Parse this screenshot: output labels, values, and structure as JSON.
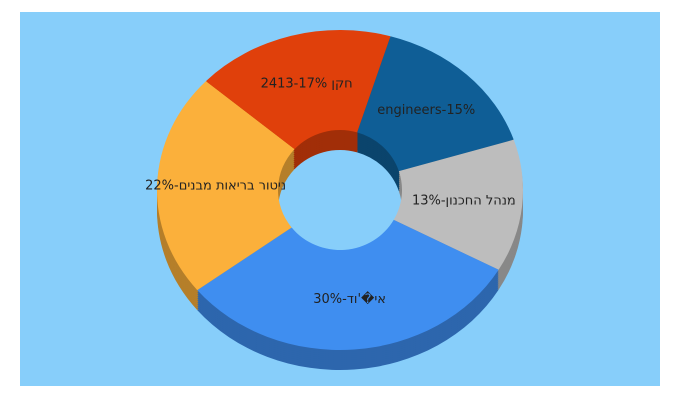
{
  "chart_data": {
    "type": "donut3d",
    "values": [
      15,
      13,
      30,
      22,
      17
    ],
    "value_labels": [
      "engineers-15%",
      "מנהל החכנון-13%",
      "אי�'וד-30%",
      "ניטור בריאות מבנים-22%",
      "חקן 2413-17%"
    ],
    "colors": [
      "#0f5e96",
      "#bdbdbd",
      "#3f8ef0",
      "#fbb03b",
      "#e0400b"
    ],
    "background": "#87cefa"
  }
}
